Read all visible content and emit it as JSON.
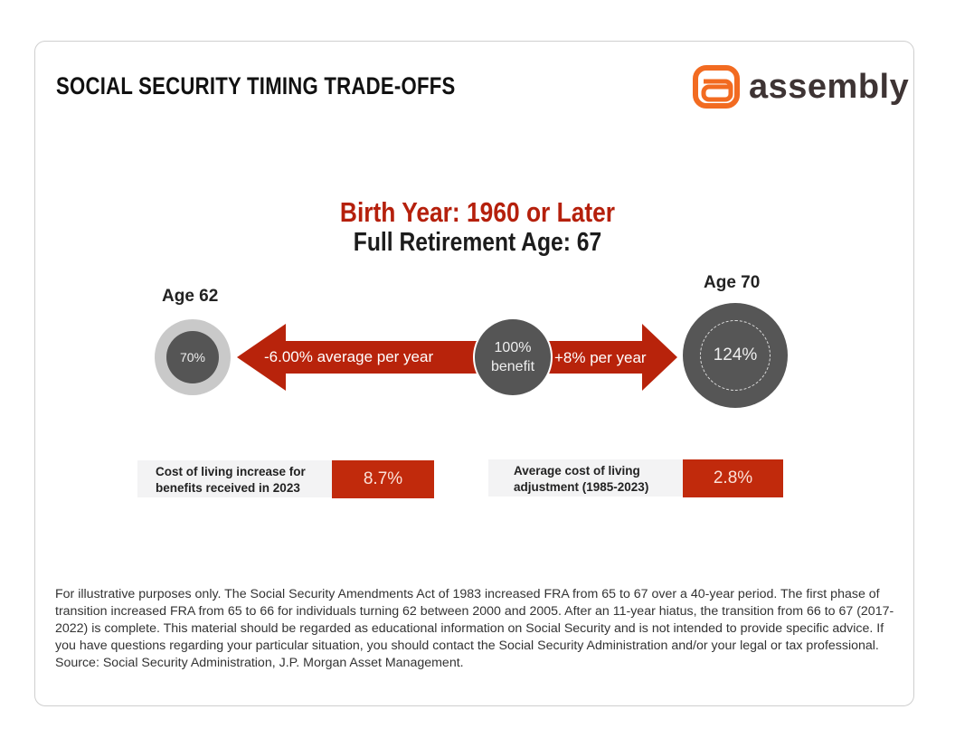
{
  "header": {
    "title": "SOCIAL SECURITY TIMING TRADE-OFFS",
    "logo_text": "assembly"
  },
  "headline": {
    "birth_year": "Birth Year: 1960 or Later",
    "fra": "Full Retirement Age: 67"
  },
  "left": {
    "age": "Age 62",
    "value": "70%",
    "arrow": "-6.00% average per year"
  },
  "center": {
    "line1": "100%",
    "line2": "benefit"
  },
  "right": {
    "age": "Age 70",
    "value": "124%",
    "arrow": "+8% per year"
  },
  "stats": [
    {
      "label": "Cost of living increase for benefits received in 2023",
      "value": "8.7%"
    },
    {
      "label": "Average cost of living adjustment (1985-2023)",
      "value": "2.8%"
    }
  ],
  "footnote": "For illustrative purposes only. The Social Security Amendments Act of 1983 increased FRA from 65 to 67 over a 40-year period. The first phase of transition increased FRA from 65 to 66 for individuals turning 62 between 2000 and 2005. After an 11-year hiatus, the transition from 66 to 67 (2017-2022) is complete. This material should be regarded as educational information on Social Security and is not intended to provide specific advice. If you have questions regarding your particular situation, you should contact the Social Security Administration and/or your legal or tax professional.",
  "source": "Source: Social Security Administration, J.P. Morgan Asset Management.",
  "colors": {
    "accent": "#c12a0c",
    "headline_red": "#b5200c",
    "circle_dark": "#555555",
    "circle_light": "#cccccc",
    "logo_orange": "#f26b21"
  }
}
